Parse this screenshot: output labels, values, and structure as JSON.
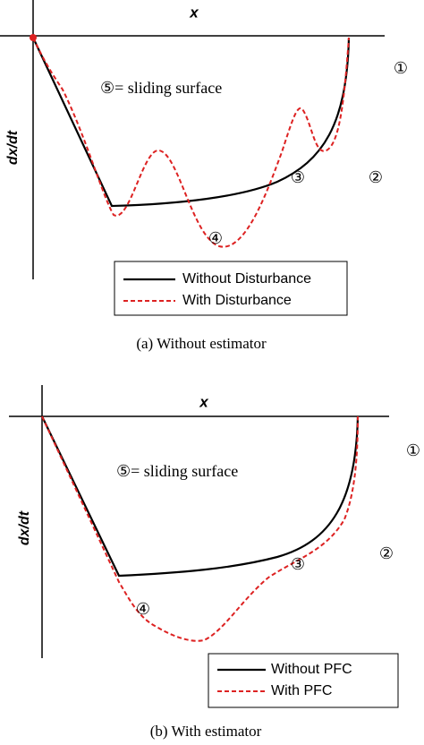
{
  "panels": [
    {
      "x_label": "x",
      "y_label": "dx/dt",
      "region1": "①",
      "sliding": "⑤= sliding surface",
      "region2": "②",
      "region3": "③",
      "region4": "④",
      "legend": [
        "Without Disturbance",
        "With Disturbance"
      ],
      "caption": "(a) Without estimator"
    },
    {
      "x_label": "x",
      "y_label": "dx/dt",
      "region1": "①",
      "sliding": "⑤= sliding surface",
      "region2": "②",
      "region3": "③",
      "region4": "④",
      "legend": [
        "Without PFC",
        "With PFC"
      ],
      "caption": "(b) With estimator"
    }
  ]
}
